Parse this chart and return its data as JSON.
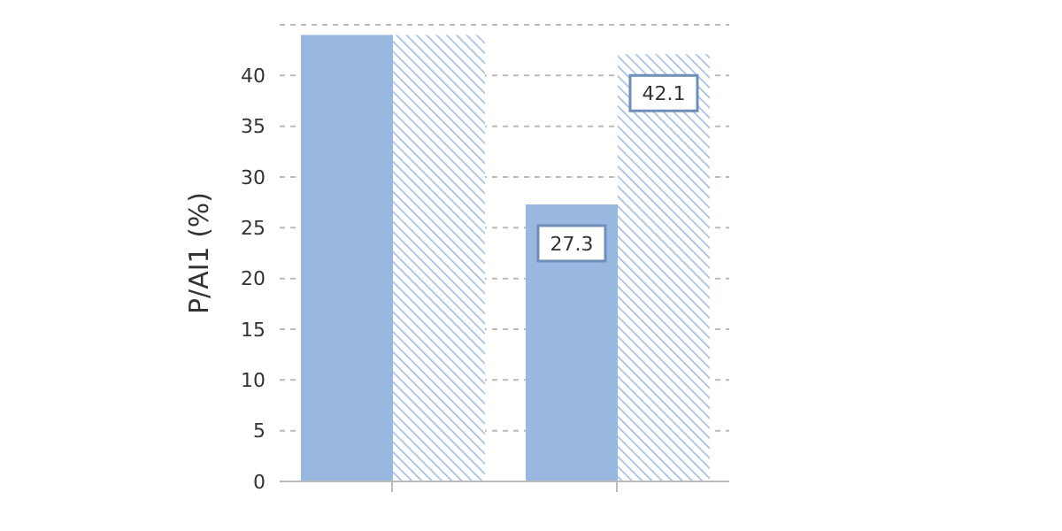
{
  "chart_data": {
    "type": "bar",
    "ylabel": "P/AI1 (%)",
    "categories": [
      null,
      null
    ],
    "series": [
      {
        "color": "#98b8e0",
        "values": [
          44,
          27.3
        ],
        "value_labels": [
          null,
          "27.3"
        ]
      },
      {
        "color": "#98b8e0",
        "values": [
          44,
          42.1
        ],
        "value_labels": [
          null,
          "42.1"
        ]
      }
    ],
    "ylim": [
      0,
      45
    ],
    "yticks": [
      0,
      5,
      10,
      15,
      20,
      25,
      30,
      35,
      40
    ],
    "grid": "y"
  }
}
